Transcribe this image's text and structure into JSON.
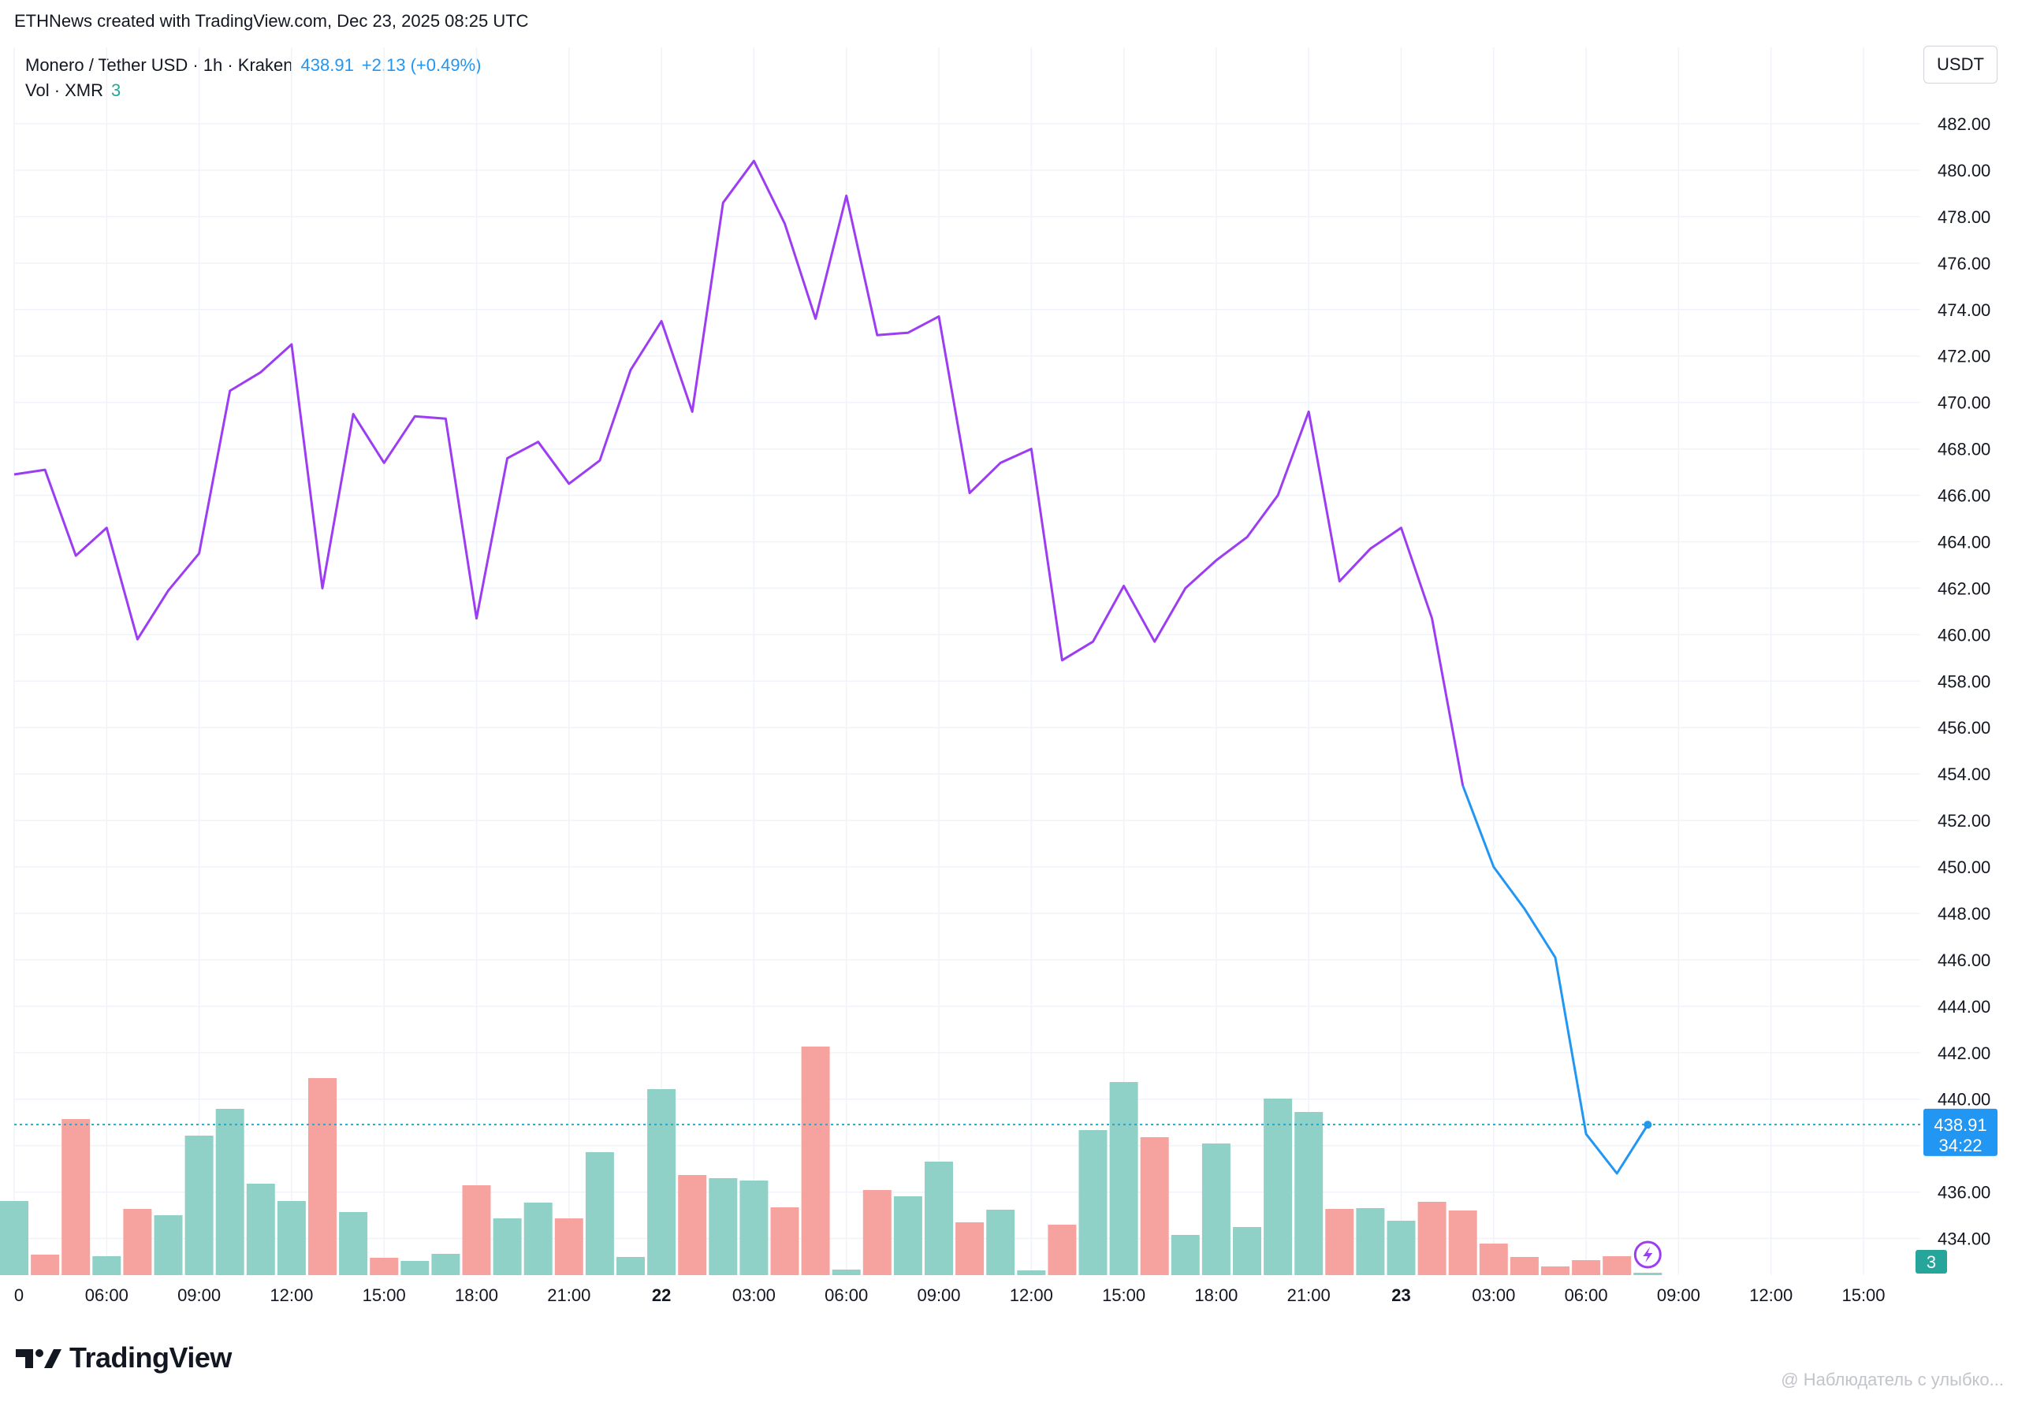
{
  "header": {
    "credit": "ETHNews created with TradingView.com, Dec 23, 2025 08:25 UTC"
  },
  "legend": {
    "symbol": "Monero / Tether USD · 1h · Kraken",
    "price": "438.91",
    "change": "+2.13 (+0.49%)",
    "volume_label": "Vol · XMR",
    "volume_value": "3"
  },
  "currency_button": "USDT",
  "price_tag": {
    "price": "438.91",
    "countdown": "34:22"
  },
  "volume_tag": "3",
  "footer": {
    "brand": "TradingView",
    "watermark": "@ Наблюдатель с улыбко..."
  },
  "colors": {
    "line_up": "#9c3df4",
    "line_down": "#2196f3",
    "vol_up": "#8fd1c7",
    "vol_down": "#f6a3a0",
    "price_tag_bg": "#2196f3",
    "vol_tag_bg": "#26a69a",
    "grid": "#f0f3fa"
  },
  "chart_data": {
    "type": "line",
    "price_axis": {
      "ylim": [
        432.0,
        483.0
      ],
      "ticks": [
        "482.00",
        "480.00",
        "478.00",
        "476.00",
        "474.00",
        "472.00",
        "470.00",
        "468.00",
        "466.00",
        "464.00",
        "462.00",
        "460.00",
        "458.00",
        "456.00",
        "454.00",
        "452.00",
        "450.00",
        "448.00",
        "446.00",
        "444.00",
        "442.00",
        "440.00",
        "436.00",
        "434.00"
      ]
    },
    "time_axis": {
      "labels": [
        {
          "t": 0,
          "text": "0"
        },
        {
          "t": 3,
          "text": "06:00"
        },
        {
          "t": 6,
          "text": "09:00"
        },
        {
          "t": 9,
          "text": "12:00"
        },
        {
          "t": 12,
          "text": "15:00"
        },
        {
          "t": 15,
          "text": "18:00"
        },
        {
          "t": 18,
          "text": "21:00"
        },
        {
          "t": 21,
          "text": "22",
          "bold": true
        },
        {
          "t": 24,
          "text": "03:00"
        },
        {
          "t": 27,
          "text": "06:00"
        },
        {
          "t": 30,
          "text": "09:00"
        },
        {
          "t": 33,
          "text": "12:00"
        },
        {
          "t": 36,
          "text": "15:00"
        },
        {
          "t": 39,
          "text": "18:00"
        },
        {
          "t": 42,
          "text": "21:00"
        },
        {
          "t": 45,
          "text": "23",
          "bold": true
        },
        {
          "t": 48,
          "text": "03:00"
        },
        {
          "t": 51,
          "text": "06:00"
        },
        {
          "t": 54,
          "text": "09:00"
        },
        {
          "t": 57,
          "text": "12:00"
        },
        {
          "t": 60,
          "text": "15:00"
        }
      ]
    },
    "current_price": 438.91,
    "series": [
      {
        "values": [
          466.9,
          467.1,
          463.4,
          464.6,
          459.8,
          461.9,
          463.5,
          470.5,
          471.3,
          472.5,
          462.0,
          469.5,
          467.4,
          469.4,
          469.3,
          460.7,
          467.6,
          468.3,
          466.5,
          467.5,
          471.4,
          473.5,
          469.6,
          478.6,
          480.4,
          477.7,
          473.6,
          478.9,
          472.9,
          473.0,
          473.7,
          466.1,
          467.4,
          468.0,
          458.9,
          459.7,
          462.1,
          459.7,
          462.0,
          463.2,
          464.2,
          466.0,
          469.6,
          462.3,
          463.7,
          464.6,
          460.7,
          453.5,
          450.0,
          448.2,
          446.1,
          438.5,
          436.8,
          438.9
        ]
      }
    ],
    "volume": {
      "ylim": [
        0,
        360
      ],
      "bars": [
        {
          "v": 94,
          "d": "up"
        },
        {
          "v": 26,
          "d": "down"
        },
        {
          "v": 198,
          "d": "down"
        },
        {
          "v": 24,
          "d": "up"
        },
        {
          "v": 84,
          "d": "down"
        },
        {
          "v": 76,
          "d": "up"
        },
        {
          "v": 177,
          "d": "up"
        },
        {
          "v": 211,
          "d": "up"
        },
        {
          "v": 116,
          "d": "up"
        },
        {
          "v": 94,
          "d": "up"
        },
        {
          "v": 250,
          "d": "down"
        },
        {
          "v": 80,
          "d": "up"
        },
        {
          "v": 22,
          "d": "down"
        },
        {
          "v": 18,
          "d": "up"
        },
        {
          "v": 27,
          "d": "up"
        },
        {
          "v": 114,
          "d": "down"
        },
        {
          "v": 72,
          "d": "up"
        },
        {
          "v": 92,
          "d": "up"
        },
        {
          "v": 72,
          "d": "down"
        },
        {
          "v": 156,
          "d": "up"
        },
        {
          "v": 23,
          "d": "up"
        },
        {
          "v": 236,
          "d": "up"
        },
        {
          "v": 127,
          "d": "down"
        },
        {
          "v": 123,
          "d": "up"
        },
        {
          "v": 120,
          "d": "up"
        },
        {
          "v": 86,
          "d": "down"
        },
        {
          "v": 290,
          "d": "down"
        },
        {
          "v": 7,
          "d": "up"
        },
        {
          "v": 108,
          "d": "down"
        },
        {
          "v": 100,
          "d": "up"
        },
        {
          "v": 144,
          "d": "up"
        },
        {
          "v": 67,
          "d": "down"
        },
        {
          "v": 83,
          "d": "up"
        },
        {
          "v": 6,
          "d": "up"
        },
        {
          "v": 64,
          "d": "down"
        },
        {
          "v": 184,
          "d": "up"
        },
        {
          "v": 245,
          "d": "up"
        },
        {
          "v": 175,
          "d": "down"
        },
        {
          "v": 51,
          "d": "up"
        },
        {
          "v": 167,
          "d": "up"
        },
        {
          "v": 61,
          "d": "up"
        },
        {
          "v": 224,
          "d": "up"
        },
        {
          "v": 207,
          "d": "up"
        },
        {
          "v": 84,
          "d": "down"
        },
        {
          "v": 85,
          "d": "up"
        },
        {
          "v": 69,
          "d": "up"
        },
        {
          "v": 93,
          "d": "down"
        },
        {
          "v": 82,
          "d": "down"
        },
        {
          "v": 40,
          "d": "down"
        },
        {
          "v": 23,
          "d": "down"
        },
        {
          "v": 11,
          "d": "down"
        },
        {
          "v": 19,
          "d": "down"
        },
        {
          "v": 24,
          "d": "down"
        },
        {
          "v": 3,
          "d": "up"
        }
      ]
    }
  }
}
